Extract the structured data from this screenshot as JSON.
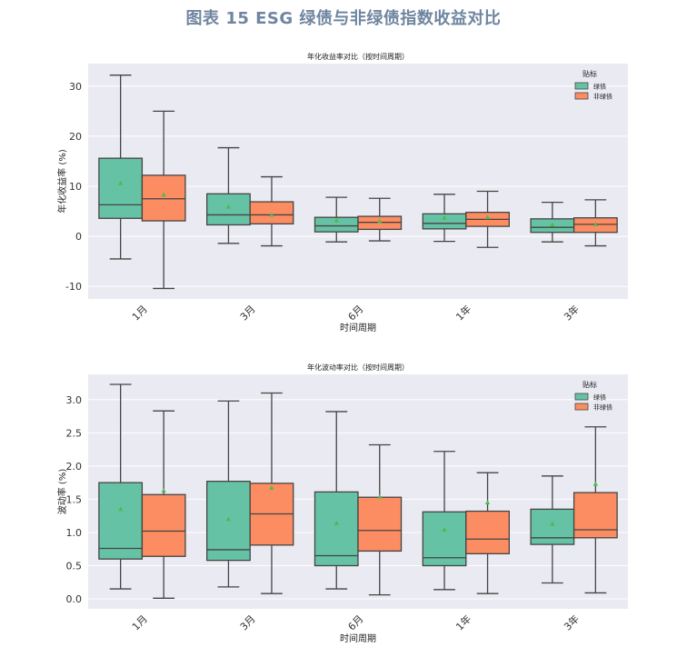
{
  "page": {
    "title": "图表 15 ESG 绿债与非绿债指数收益对比"
  },
  "colors": {
    "green": "#66c2a5",
    "orange": "#fc8d62",
    "plot_bg": "#eaeaf2",
    "line": "#444444",
    "mean_marker": "#4cbb4c"
  },
  "chart_data": [
    {
      "type": "box",
      "title": "年化收益率对比（按时间周期）",
      "xlabel": "时间周期",
      "ylabel": "年化收益率 (%)",
      "categories": [
        "1月",
        "3月",
        "6月",
        "1年",
        "3年"
      ],
      "yticks": [
        30,
        20,
        10,
        0,
        -10
      ],
      "ylim": [
        -12.5,
        34.5
      ],
      "legend": {
        "title": "贴标",
        "position": "top-right",
        "entries": [
          "绿债",
          "非绿债"
        ]
      },
      "series": [
        {
          "name": "绿债",
          "color": "#66c2a5",
          "boxes": [
            {
              "whislo": -4.5,
              "q1": 3.6,
              "med": 6.3,
              "q3": 15.6,
              "whishi": 32.2,
              "mean": 10.6
            },
            {
              "whislo": -1.4,
              "q1": 2.3,
              "med": 4.3,
              "q3": 8.5,
              "whishi": 17.7,
              "mean": 5.9
            },
            {
              "whislo": -1.1,
              "q1": 0.9,
              "med": 2.1,
              "q3": 3.8,
              "whishi": 7.8,
              "mean": 3.2
            },
            {
              "whislo": -1.0,
              "q1": 1.5,
              "med": 2.6,
              "q3": 4.5,
              "whishi": 8.4,
              "mean": 3.7
            },
            {
              "whislo": -1.1,
              "q1": 0.8,
              "med": 1.8,
              "q3": 3.5,
              "whishi": 6.8,
              "mean": 2.3
            }
          ]
        },
        {
          "name": "非绿债",
          "color": "#fc8d62",
          "boxes": [
            {
              "whislo": -10.4,
              "q1": 3.1,
              "med": 7.5,
              "q3": 12.2,
              "whishi": 25.0,
              "mean": 8.3
            },
            {
              "whislo": -1.9,
              "q1": 2.5,
              "med": 4.3,
              "q3": 6.9,
              "whishi": 11.9,
              "mean": 4.3
            },
            {
              "whislo": -0.9,
              "q1": 1.4,
              "med": 2.8,
              "q3": 4.0,
              "whishi": 7.6,
              "mean": 3.0
            },
            {
              "whislo": -2.2,
              "q1": 2.0,
              "med": 3.4,
              "q3": 4.8,
              "whishi": 9.0,
              "mean": 3.8
            },
            {
              "whislo": -1.9,
              "q1": 0.8,
              "med": 2.4,
              "q3": 3.7,
              "whishi": 7.3,
              "mean": 2.4
            }
          ]
        }
      ]
    },
    {
      "type": "box",
      "title": "年化波动率对比（按时间周期）",
      "xlabel": "时间周期",
      "ylabel": "波动率 (%)",
      "categories": [
        "1月",
        "3月",
        "6月",
        "1年",
        "3年"
      ],
      "yticks": [
        "0.0",
        "0.5",
        "1.0",
        "1.5",
        "2.0",
        "2.5",
        "3.0"
      ],
      "ylim": [
        -0.15,
        3.38
      ],
      "legend": {
        "title": "贴标",
        "position": "top-right",
        "entries": [
          "绿债",
          "非绿债"
        ]
      },
      "series": [
        {
          "name": "绿债",
          "color": "#66c2a5",
          "boxes": [
            {
              "whislo": 0.15,
              "q1": 0.6,
              "med": 0.76,
              "q3": 1.75,
              "whishi": 3.23,
              "mean": 1.35
            },
            {
              "whislo": 0.18,
              "q1": 0.58,
              "med": 0.74,
              "q3": 1.77,
              "whishi": 2.98,
              "mean": 1.2
            },
            {
              "whislo": 0.15,
              "q1": 0.5,
              "med": 0.65,
              "q3": 1.61,
              "whishi": 2.82,
              "mean": 1.14
            },
            {
              "whislo": 0.14,
              "q1": 0.5,
              "med": 0.62,
              "q3": 1.31,
              "whishi": 2.22,
              "mean": 1.04
            },
            {
              "whislo": 0.24,
              "q1": 0.82,
              "med": 0.92,
              "q3": 1.35,
              "whishi": 1.85,
              "mean": 1.13
            }
          ]
        },
        {
          "name": "非绿债",
          "color": "#fc8d62",
          "boxes": [
            {
              "whislo": 0.01,
              "q1": 0.64,
              "med": 1.02,
              "q3": 1.57,
              "whishi": 2.83,
              "mean": 1.63
            },
            {
              "whislo": 0.08,
              "q1": 0.81,
              "med": 1.28,
              "q3": 1.74,
              "whishi": 3.1,
              "mean": 1.67
            },
            {
              "whislo": 0.06,
              "q1": 0.72,
              "med": 1.03,
              "q3": 1.53,
              "whishi": 2.32,
              "mean": 1.54
            },
            {
              "whislo": 0.08,
              "q1": 0.68,
              "med": 0.9,
              "q3": 1.32,
              "whishi": 1.9,
              "mean": 1.45
            },
            {
              "whislo": 0.09,
              "q1": 0.92,
              "med": 1.04,
              "q3": 1.6,
              "whishi": 2.59,
              "mean": 1.73
            }
          ]
        }
      ]
    }
  ]
}
